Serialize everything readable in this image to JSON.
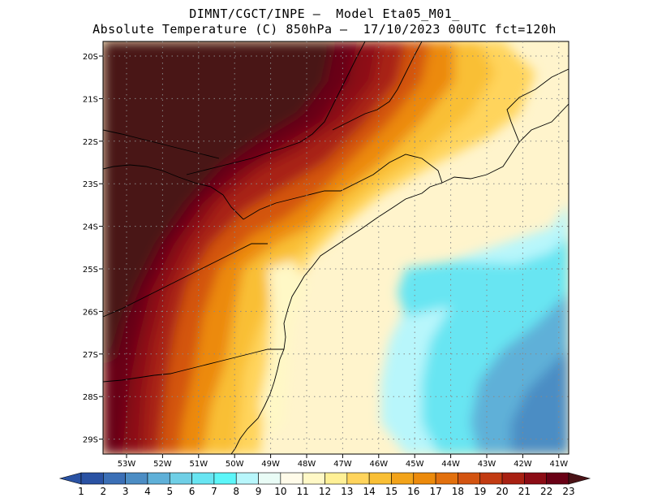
{
  "title": {
    "line1": "DIMNT/CGCT/INPE –  Model Eta05_M01_",
    "line2": "Absolute Temperature (C) 850hPa –  17/10/2023 00UTC fct=120h"
  },
  "map": {
    "lon_labels": [
      "53W",
      "52W",
      "51W",
      "50W",
      "49W",
      "48W",
      "47W",
      "46W",
      "45W",
      "44W",
      "43W",
      "42W",
      "41W"
    ],
    "lat_labels": [
      "20S",
      "21S",
      "22S",
      "23S",
      "24S",
      "25S",
      "26S",
      "27S",
      "28S",
      "29S"
    ]
  },
  "colorbar": {
    "labels": [
      "1",
      "2",
      "3",
      "4",
      "5",
      "6",
      "7",
      "8",
      "9",
      "10",
      "11",
      "12",
      "13",
      "14",
      "15",
      "16",
      "17",
      "18",
      "19",
      "20",
      "21",
      "22",
      "23"
    ],
    "colors": [
      "#2a52a3",
      "#3b6fb6",
      "#4c8dc4",
      "#5fb0d8",
      "#6fcfe6",
      "#68e5f2",
      "#5cf6f9",
      "#b8f6fb",
      "#e9fcf6",
      "#fffbe9",
      "#fff8c6",
      "#fff096",
      "#ffd45c",
      "#f9bf35",
      "#f2a31a",
      "#ec8a0b",
      "#e2700d",
      "#d35411",
      "#c23b12",
      "#a82012",
      "#8c0c15",
      "#690015"
    ]
  }
}
